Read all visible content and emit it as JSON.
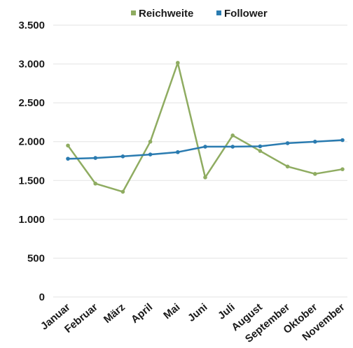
{
  "chart_data": {
    "type": "line",
    "title": "",
    "xlabel": "",
    "ylabel": "",
    "categories": [
      "Januar",
      "Februar",
      "März",
      "April",
      "Mai",
      "Juni",
      "Juli",
      "August",
      "September",
      "Oktober",
      "November"
    ],
    "series": [
      {
        "name": "Reichweite",
        "color": "#8fac61",
        "values": [
          1950,
          1460,
          1355,
          2000,
          3015,
          1540,
          2080,
          1880,
          1680,
          1585,
          1645
        ]
      },
      {
        "name": "Follower",
        "color": "#2a7bb0",
        "values": [
          1780,
          1790,
          1810,
          1835,
          1865,
          1935,
          1935,
          1940,
          1980,
          2000,
          2020
        ]
      }
    ],
    "ylim": [
      0,
      3500
    ],
    "yticks": [
      0,
      500,
      1000,
      1500,
      2000,
      2500,
      3000,
      3500
    ],
    "ytick_labels": [
      "0",
      "500",
      "1.000",
      "1.500",
      "2.000",
      "2.500",
      "3.000",
      "3.500"
    ],
    "grid": true,
    "legend_position": "top"
  }
}
